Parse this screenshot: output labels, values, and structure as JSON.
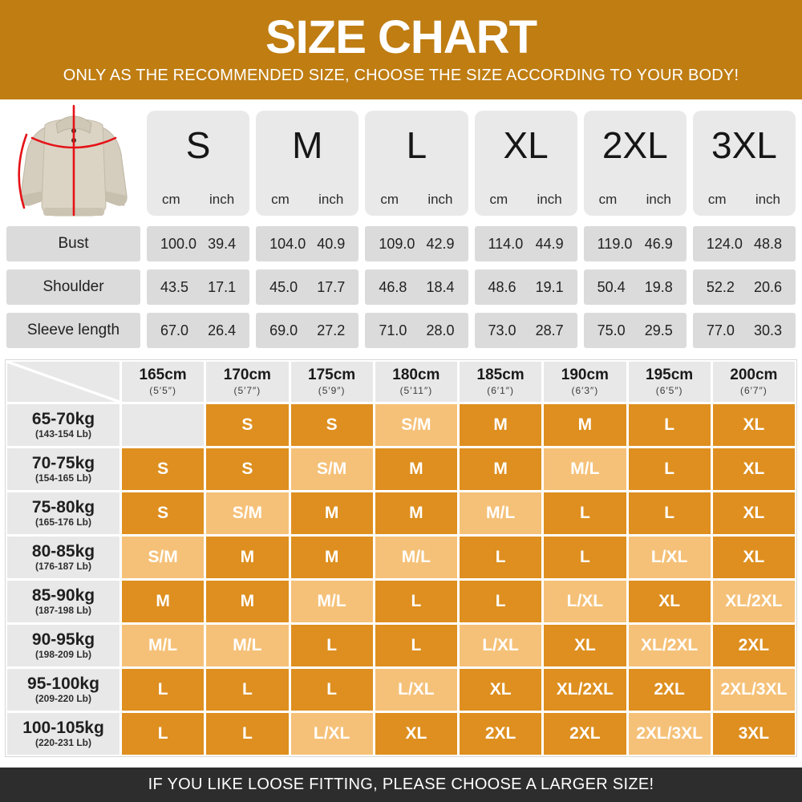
{
  "banner": {
    "title": "SIZE CHART",
    "subtitle": "ONLY AS THE RECOMMENDED SIZE, CHOOSE THE SIZE ACCORDING TO YOUR BODY!",
    "bg_color": "#BF7D12"
  },
  "product_image": {
    "label": "beige knit sweater with red measurement guide lines"
  },
  "measurements": {
    "sizes": [
      "S",
      "M",
      "L",
      "XL",
      "2XL",
      "3XL"
    ],
    "unit_headers": [
      "cm",
      "inch"
    ],
    "rows": [
      {
        "label": "Bust",
        "values": [
          [
            "100.0",
            "39.4"
          ],
          [
            "104.0",
            "40.9"
          ],
          [
            "109.0",
            "42.9"
          ],
          [
            "114.0",
            "44.9"
          ],
          [
            "119.0",
            "46.9"
          ],
          [
            "124.0",
            "48.8"
          ]
        ]
      },
      {
        "label": "Shoulder",
        "values": [
          [
            "43.5",
            "17.1"
          ],
          [
            "45.0",
            "17.7"
          ],
          [
            "46.8",
            "18.4"
          ],
          [
            "48.6",
            "19.1"
          ],
          [
            "50.4",
            "19.8"
          ],
          [
            "52.2",
            "20.6"
          ]
        ]
      },
      {
        "label": "Sleeve length",
        "values": [
          [
            "67.0",
            "26.4"
          ],
          [
            "69.0",
            "27.2"
          ],
          [
            "71.0",
            "28.0"
          ],
          [
            "73.0",
            "28.7"
          ],
          [
            "75.0",
            "29.5"
          ],
          [
            "77.0",
            "30.3"
          ]
        ]
      }
    ]
  },
  "fit_chart": {
    "colors": {
      "dark": "#DE8F1F",
      "light": "#F5C178",
      "empty": "#E8E8E8"
    },
    "heights": [
      {
        "cm": "165cm",
        "ft": "(5′5″)"
      },
      {
        "cm": "170cm",
        "ft": "(5′7″)"
      },
      {
        "cm": "175cm",
        "ft": "(5′9″)"
      },
      {
        "cm": "180cm",
        "ft": "(5′11″)"
      },
      {
        "cm": "185cm",
        "ft": "(6′1″)"
      },
      {
        "cm": "190cm",
        "ft": "(6′3″)"
      },
      {
        "cm": "195cm",
        "ft": "(6′5″)"
      },
      {
        "cm": "200cm",
        "ft": "(6′7″)"
      }
    ],
    "rows": [
      {
        "kg": "65-70kg",
        "lb": "(143-154 Lb)",
        "cells": [
          {
            "size": "",
            "tone": "empty"
          },
          {
            "size": "S",
            "tone": "dark"
          },
          {
            "size": "S",
            "tone": "dark"
          },
          {
            "size": "S/M",
            "tone": "light"
          },
          {
            "size": "M",
            "tone": "dark"
          },
          {
            "size": "M",
            "tone": "dark"
          },
          {
            "size": "L",
            "tone": "dark"
          },
          {
            "size": "XL",
            "tone": "dark"
          }
        ]
      },
      {
        "kg": "70-75kg",
        "lb": "(154-165 Lb)",
        "cells": [
          {
            "size": "S",
            "tone": "dark"
          },
          {
            "size": "S",
            "tone": "dark"
          },
          {
            "size": "S/M",
            "tone": "light"
          },
          {
            "size": "M",
            "tone": "dark"
          },
          {
            "size": "M",
            "tone": "dark"
          },
          {
            "size": "M/L",
            "tone": "light"
          },
          {
            "size": "L",
            "tone": "dark"
          },
          {
            "size": "XL",
            "tone": "dark"
          }
        ]
      },
      {
        "kg": "75-80kg",
        "lb": "(165-176 Lb)",
        "cells": [
          {
            "size": "S",
            "tone": "dark"
          },
          {
            "size": "S/M",
            "tone": "light"
          },
          {
            "size": "M",
            "tone": "dark"
          },
          {
            "size": "M",
            "tone": "dark"
          },
          {
            "size": "M/L",
            "tone": "light"
          },
          {
            "size": "L",
            "tone": "dark"
          },
          {
            "size": "L",
            "tone": "dark"
          },
          {
            "size": "XL",
            "tone": "dark"
          }
        ]
      },
      {
        "kg": "80-85kg",
        "lb": "(176-187 Lb)",
        "cells": [
          {
            "size": "S/M",
            "tone": "light"
          },
          {
            "size": "M",
            "tone": "dark"
          },
          {
            "size": "M",
            "tone": "dark"
          },
          {
            "size": "M/L",
            "tone": "light"
          },
          {
            "size": "L",
            "tone": "dark"
          },
          {
            "size": "L",
            "tone": "dark"
          },
          {
            "size": "L/XL",
            "tone": "light"
          },
          {
            "size": "XL",
            "tone": "dark"
          }
        ]
      },
      {
        "kg": "85-90kg",
        "lb": "(187-198 Lb)",
        "cells": [
          {
            "size": "M",
            "tone": "dark"
          },
          {
            "size": "M",
            "tone": "dark"
          },
          {
            "size": "M/L",
            "tone": "light"
          },
          {
            "size": "L",
            "tone": "dark"
          },
          {
            "size": "L",
            "tone": "dark"
          },
          {
            "size": "L/XL",
            "tone": "light"
          },
          {
            "size": "XL",
            "tone": "dark"
          },
          {
            "size": "XL/2XL",
            "tone": "light"
          }
        ]
      },
      {
        "kg": "90-95kg",
        "lb": "(198-209 Lb)",
        "cells": [
          {
            "size": "M/L",
            "tone": "light"
          },
          {
            "size": "M/L",
            "tone": "light"
          },
          {
            "size": "L",
            "tone": "dark"
          },
          {
            "size": "L",
            "tone": "dark"
          },
          {
            "size": "L/XL",
            "tone": "light"
          },
          {
            "size": "XL",
            "tone": "dark"
          },
          {
            "size": "XL/2XL",
            "tone": "light"
          },
          {
            "size": "2XL",
            "tone": "dark"
          }
        ]
      },
      {
        "kg": "95-100kg",
        "lb": "(209-220 Lb)",
        "cells": [
          {
            "size": "L",
            "tone": "dark"
          },
          {
            "size": "L",
            "tone": "dark"
          },
          {
            "size": "L",
            "tone": "dark"
          },
          {
            "size": "L/XL",
            "tone": "light"
          },
          {
            "size": "XL",
            "tone": "dark"
          },
          {
            "size": "XL/2XL",
            "tone": "dark"
          },
          {
            "size": "2XL",
            "tone": "dark"
          },
          {
            "size": "2XL/3XL",
            "tone": "light"
          }
        ]
      },
      {
        "kg": "100-105kg",
        "lb": "(220-231 Lb)",
        "cells": [
          {
            "size": "L",
            "tone": "dark"
          },
          {
            "size": "L",
            "tone": "dark"
          },
          {
            "size": "L/XL",
            "tone": "light"
          },
          {
            "size": "XL",
            "tone": "dark"
          },
          {
            "size": "2XL",
            "tone": "dark"
          },
          {
            "size": "2XL",
            "tone": "dark"
          },
          {
            "size": "2XL/3XL",
            "tone": "light"
          },
          {
            "size": "3XL",
            "tone": "dark"
          }
        ]
      }
    ]
  },
  "footer": {
    "note": "IF YOU LIKE LOOSE FITTING, PLEASE CHOOSE A LARGER SIZE!"
  },
  "chart_data": [
    {
      "type": "table",
      "title": "SIZE CHART - garment measurements",
      "columns": [
        "S cm",
        "S inch",
        "M cm",
        "M inch",
        "L cm",
        "L inch",
        "XL cm",
        "XL inch",
        "2XL cm",
        "2XL inch",
        "3XL cm",
        "3XL inch"
      ],
      "row_labels": [
        "Bust",
        "Shoulder",
        "Sleeve length"
      ],
      "values": [
        [
          100.0,
          39.4,
          104.0,
          40.9,
          109.0,
          42.9,
          114.0,
          44.9,
          119.0,
          46.9,
          124.0,
          48.8
        ],
        [
          43.5,
          17.1,
          45.0,
          17.7,
          46.8,
          18.4,
          48.6,
          19.1,
          50.4,
          19.8,
          52.2,
          20.6
        ],
        [
          67.0,
          26.4,
          69.0,
          27.2,
          71.0,
          28.0,
          73.0,
          28.7,
          75.0,
          29.5,
          77.0,
          30.3
        ]
      ]
    },
    {
      "type": "table",
      "title": "Recommended size by height and weight",
      "columns": [
        "165cm (5′5″)",
        "170cm (5′7″)",
        "175cm (5′9″)",
        "180cm (5′11″)",
        "185cm (6′1″)",
        "190cm (6′3″)",
        "195cm (6′5″)",
        "200cm (6′7″)"
      ],
      "row_labels": [
        "65-70kg (143-154 Lb)",
        "70-75kg (154-165 Lb)",
        "75-80kg (165-176 Lb)",
        "80-85kg (176-187 Lb)",
        "85-90kg (187-198 Lb)",
        "90-95kg (198-209 Lb)",
        "95-100kg (209-220 Lb)",
        "100-105kg (220-231 Lb)"
      ],
      "values": [
        [
          "",
          "S",
          "S",
          "S/M",
          "M",
          "M",
          "L",
          "XL"
        ],
        [
          "S",
          "S",
          "S/M",
          "M",
          "M",
          "M/L",
          "L",
          "XL"
        ],
        [
          "S",
          "S/M",
          "M",
          "M",
          "M/L",
          "L",
          "L",
          "XL"
        ],
        [
          "S/M",
          "M",
          "M",
          "M/L",
          "L",
          "L",
          "L/XL",
          "XL"
        ],
        [
          "M",
          "M",
          "M/L",
          "L",
          "L",
          "L/XL",
          "XL",
          "XL/2XL"
        ],
        [
          "M/L",
          "M/L",
          "L",
          "L",
          "L/XL",
          "XL",
          "XL/2XL",
          "2XL"
        ],
        [
          "L",
          "L",
          "L",
          "L/XL",
          "XL",
          "XL/2XL",
          "2XL",
          "2XL/3XL"
        ],
        [
          "L",
          "L",
          "L/XL",
          "XL",
          "2XL",
          "2XL",
          "2XL/3XL",
          "3XL"
        ]
      ]
    }
  ]
}
